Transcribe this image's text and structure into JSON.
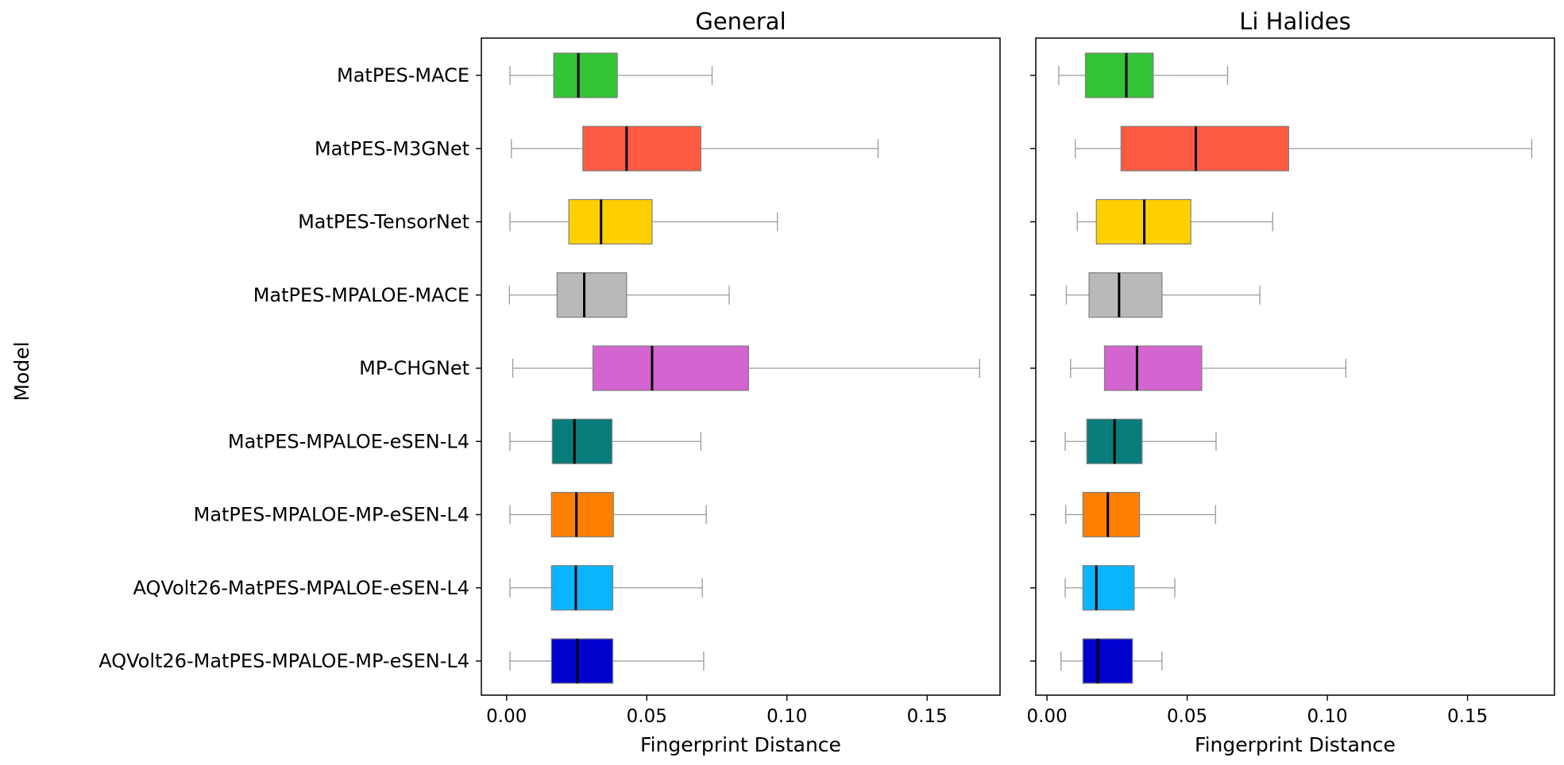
{
  "figure": {
    "ylabel": "Model",
    "categories": [
      "MatPES-MACE",
      "MatPES-M3GNet",
      "MatPES-TensorNet",
      "MatPES-MPALOE-MACE",
      "MP-CHGNet",
      "MatPES-MPALOE-eSEN-L4",
      "MatPES-MPALOE-MP-eSEN-L4",
      "AQVolt26-MatPES-MPALOE-eSEN-L4",
      "AQVolt26-MatPES-MPALOE-MP-eSEN-L4"
    ],
    "colors": [
      "#33c433",
      "#ff5a42",
      "#ffd000",
      "#b9b9b9",
      "#d465d0",
      "#067d7a",
      "#ff8000",
      "#0ab4ff",
      "#0000cd"
    ],
    "xticks": [
      "0.00",
      "0.05",
      "0.10",
      "0.15"
    ]
  },
  "chart_data": [
    {
      "type": "box",
      "orientation": "horizontal",
      "title": "General",
      "xlabel": "Fingerprint Distance",
      "xlim": [
        -0.009,
        0.176
      ],
      "boxes": [
        {
          "category": "MatPES-MACE",
          "whislo": 0.0012,
          "q1": 0.0168,
          "med": 0.0256,
          "q3": 0.0395,
          "whishi": 0.0733
        },
        {
          "category": "MatPES-M3GNet",
          "whislo": 0.0017,
          "q1": 0.0272,
          "med": 0.0428,
          "q3": 0.0693,
          "whishi": 0.1325
        },
        {
          "category": "MatPES-TensorNet",
          "whislo": 0.0012,
          "q1": 0.0222,
          "med": 0.0337,
          "q3": 0.0519,
          "whishi": 0.0966
        },
        {
          "category": "MatPES-MPALOE-MACE",
          "whislo": 0.001,
          "q1": 0.018,
          "med": 0.0277,
          "q3": 0.0428,
          "whishi": 0.0794
        },
        {
          "category": "MP-CHGNet",
          "whislo": 0.0022,
          "q1": 0.0308,
          "med": 0.0519,
          "q3": 0.0863,
          "whishi": 0.1687
        },
        {
          "category": "MatPES-MPALOE-eSEN-L4",
          "whislo": 0.0012,
          "q1": 0.0163,
          "med": 0.0242,
          "q3": 0.0376,
          "whishi": 0.0693
        },
        {
          "category": "MatPES-MPALOE-MP-eSEN-L4",
          "whislo": 0.0012,
          "q1": 0.016,
          "med": 0.0249,
          "q3": 0.0381,
          "whishi": 0.0712
        },
        {
          "category": "AQVolt26-MatPES-MPALOE-eSEN-L4",
          "whislo": 0.0012,
          "q1": 0.016,
          "med": 0.0247,
          "q3": 0.0379,
          "whishi": 0.0698
        },
        {
          "category": "AQVolt26-MatPES-MPALOE-MP-eSEN-L4",
          "whislo": 0.0012,
          "q1": 0.016,
          "med": 0.0252,
          "q3": 0.0379,
          "whishi": 0.0703
        }
      ]
    },
    {
      "type": "box",
      "orientation": "horizontal",
      "title": "Li Halides",
      "xlabel": "Fingerprint Distance",
      "xlim": [
        -0.004,
        0.181
      ],
      "boxes": [
        {
          "category": "MatPES-MACE",
          "whislo": 0.0042,
          "q1": 0.0137,
          "med": 0.0283,
          "q3": 0.0379,
          "whishi": 0.0644
        },
        {
          "category": "MatPES-M3GNet",
          "whislo": 0.0101,
          "q1": 0.0264,
          "med": 0.0531,
          "q3": 0.0862,
          "whishi": 0.1729
        },
        {
          "category": "MatPES-TensorNet",
          "whislo": 0.0108,
          "q1": 0.0176,
          "med": 0.0347,
          "q3": 0.0513,
          "whishi": 0.0805
        },
        {
          "category": "MatPES-MPALOE-MACE",
          "whislo": 0.0069,
          "q1": 0.015,
          "med": 0.0257,
          "q3": 0.041,
          "whishi": 0.0759
        },
        {
          "category": "MP-CHGNet",
          "whislo": 0.0084,
          "q1": 0.0205,
          "med": 0.0321,
          "q3": 0.0552,
          "whishi": 0.1066
        },
        {
          "category": "MatPES-MPALOE-eSEN-L4",
          "whislo": 0.0065,
          "q1": 0.0142,
          "med": 0.0241,
          "q3": 0.0339,
          "whishi": 0.0603
        },
        {
          "category": "MatPES-MPALOE-MP-eSEN-L4",
          "whislo": 0.0067,
          "q1": 0.0128,
          "med": 0.0217,
          "q3": 0.033,
          "whishi": 0.0601
        },
        {
          "category": "AQVolt26-MatPES-MPALOE-eSEN-L4",
          "whislo": 0.0065,
          "q1": 0.0128,
          "med": 0.0176,
          "q3": 0.0311,
          "whishi": 0.0456
        },
        {
          "category": "AQVolt26-MatPES-MPALOE-MP-eSEN-L4",
          "whislo": 0.005,
          "q1": 0.0128,
          "med": 0.0181,
          "q3": 0.0305,
          "whishi": 0.041
        }
      ]
    }
  ]
}
